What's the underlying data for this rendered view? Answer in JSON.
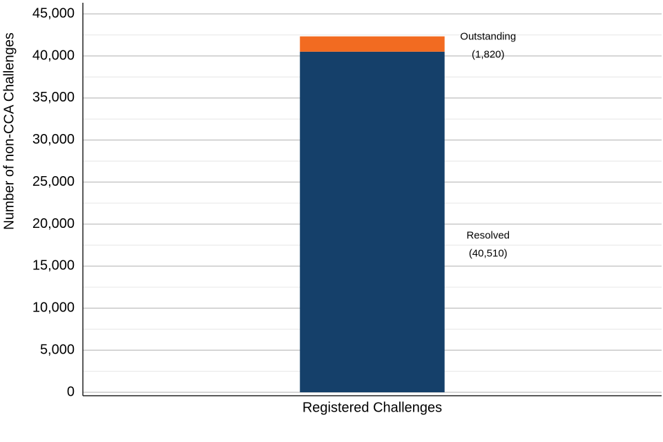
{
  "chart_data": {
    "type": "stacked_bar",
    "y_label": "Number of non-CCA Challenges",
    "categories": [
      "Registered Challenges"
    ],
    "series": [
      {
        "name": "Resolved",
        "color": "#15406a",
        "values": [
          40510
        ],
        "value_labels": [
          "(40,510)"
        ]
      },
      {
        "name": "Outstanding",
        "color": "#f26b21",
        "values": [
          1820
        ],
        "value_labels": [
          "(1,820)"
        ]
      }
    ],
    "ylim": [
      0,
      46000
    ],
    "yticks": [
      0,
      {
        "value": 5000,
        "label": "5,000"
      },
      {
        "value": 10000,
        "label": "10,000"
      },
      {
        "value": 15000,
        "label": "15,000"
      },
      {
        "value": 20000,
        "label": "20,000"
      },
      {
        "value": 25000,
        "label": "25,000"
      },
      {
        "value": 30000,
        "label": "30,000"
      },
      {
        "value": 35000,
        "label": "35,000"
      },
      {
        "value": 40000,
        "label": "40,000"
      },
      {
        "value": 45000,
        "label": "45,000"
      }
    ],
    "yminorticks": [
      2500,
      7500,
      12500,
      17500,
      22500,
      27500,
      32500,
      37500,
      42500
    ],
    "grid": true
  }
}
